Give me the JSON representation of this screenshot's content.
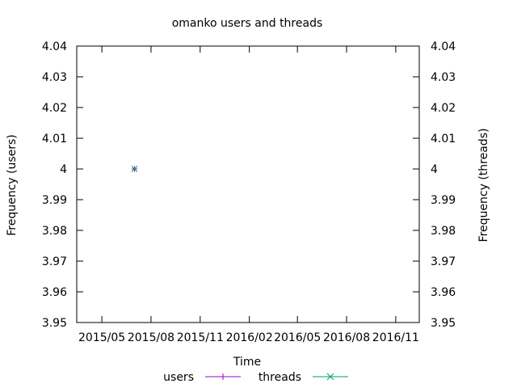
{
  "chart_data": {
    "type": "line",
    "title": "omanko users and threads",
    "xlabel": "Time",
    "ylabel": "Frequency (users)",
    "y2label": "Frequency (threads)",
    "x_range": [
      "2015-03-15",
      "2016-12-15"
    ],
    "x_ticks": [
      "2015/05",
      "2015/08",
      "2015/11",
      "2016/02",
      "2016/05",
      "2016/08",
      "2016/11"
    ],
    "x_tick_dates": [
      "2015-05-01",
      "2015-08-01",
      "2015-11-01",
      "2016-02-01",
      "2016-05-01",
      "2016-08-01",
      "2016-11-01"
    ],
    "ylim": [
      3.95,
      4.04
    ],
    "y_ticks": [
      3.95,
      3.96,
      3.97,
      3.98,
      3.99,
      4,
      4.01,
      4.02,
      4.03,
      4.04
    ],
    "y_tick_labels": [
      "3.95",
      "3.96",
      "3.97",
      "3.98",
      "3.99",
      "4",
      "4.01",
      "4.02",
      "4.03",
      "4.04"
    ],
    "grid": false,
    "legend_position": "bottom",
    "series": [
      {
        "name": "users",
        "color": "#9400d3",
        "marker": "plus",
        "points": [
          {
            "x": "2015-07-01",
            "y": 4
          }
        ]
      },
      {
        "name": "threads",
        "color": "#009e73",
        "marker": "cross",
        "points": [
          {
            "x": "2015-07-01",
            "y": 4
          }
        ]
      }
    ]
  }
}
